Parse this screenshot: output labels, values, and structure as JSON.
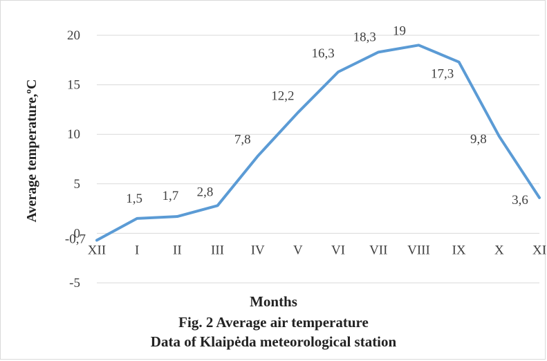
{
  "chart_data": {
    "type": "line",
    "categories": [
      "XII",
      "I",
      "II",
      "III",
      "IV",
      "V",
      "VI",
      "VII",
      "VIII",
      "IX",
      "X",
      "XI"
    ],
    "series": [
      {
        "values": [
          -0.7,
          1.5,
          1.7,
          2.8,
          7.8,
          12.2,
          16.3,
          18.3,
          19,
          17.3,
          9.8,
          3.6
        ],
        "labels": [
          "-0,7",
          "1,5",
          "1,7",
          "2,8",
          "7,8",
          "12,2",
          "16,3",
          "18,3",
          "19",
          "17,3",
          "9,8",
          "3,6"
        ],
        "color": "#5b9bd5"
      }
    ],
    "yticks": [
      "20",
      "15",
      "10",
      "5",
      "0",
      "-5"
    ],
    "ytick_values": [
      20,
      15,
      10,
      5,
      0,
      -5
    ],
    "ylim": [
      -5,
      20
    ],
    "ylabel": "Average temperature,ºC",
    "xlabel": "Months",
    "title": "Fig. 2 Average air temperature",
    "subtitle": "Data of Klaipėda meteorological station",
    "grid": true,
    "gridline_color": "#d9d9d9",
    "legend": "none"
  }
}
